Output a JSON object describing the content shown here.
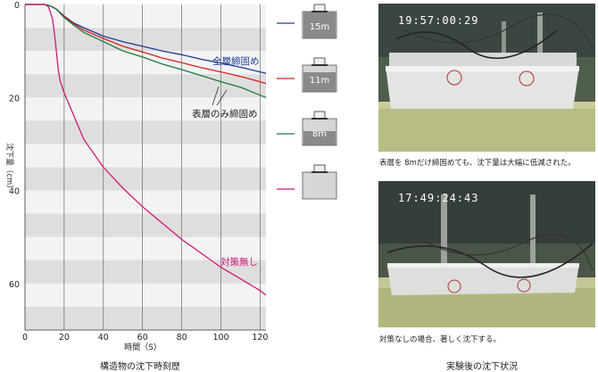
{
  "chart_data": {
    "type": "line",
    "title": "構造物の沈下時刻歴",
    "xlabel": "時間（S）",
    "ylabel": "沈下量（cm）",
    "xlim": [
      0,
      123
    ],
    "ylim": [
      0,
      70
    ],
    "xticks": [
      0,
      20,
      40,
      60,
      80,
      100,
      120
    ],
    "yticks": [
      0,
      20,
      40,
      60
    ],
    "grid": true,
    "series": [
      {
        "name": "15m",
        "color": "#1f3a93",
        "x": [
          0,
          10,
          13,
          16,
          20,
          25,
          30,
          40,
          50,
          60,
          70,
          80,
          90,
          100,
          110,
          120,
          123
        ],
        "y": [
          0,
          0,
          0.3,
          1.0,
          2.5,
          4.0,
          5.0,
          6.8,
          8.0,
          9.0,
          10.0,
          10.8,
          11.8,
          12.6,
          13.5,
          14.5,
          14.8
        ]
      },
      {
        "name": "11m",
        "color": "#d42020",
        "x": [
          0,
          10,
          13,
          16,
          20,
          25,
          30,
          40,
          50,
          60,
          70,
          80,
          90,
          100,
          110,
          120,
          123
        ],
        "y": [
          0,
          0,
          0.3,
          1.0,
          2.6,
          4.2,
          5.5,
          7.3,
          9.0,
          10.2,
          11.5,
          12.5,
          13.6,
          14.5,
          15.5,
          16.6,
          17.0
        ]
      },
      {
        "name": "8m",
        "color": "#1e7a3a",
        "x": [
          0,
          10,
          13,
          16,
          20,
          25,
          30,
          40,
          50,
          60,
          70,
          80,
          90,
          100,
          110,
          120,
          123
        ],
        "y": [
          0,
          0,
          0.3,
          1.0,
          2.8,
          4.5,
          6.0,
          8.0,
          10.0,
          11.3,
          12.8,
          14.0,
          15.3,
          16.6,
          17.8,
          19.5,
          20.0
        ]
      },
      {
        "name": "対策無し",
        "color": "#d0187a",
        "x": [
          0,
          10,
          12,
          14,
          15,
          16,
          17,
          18,
          20,
          25,
          30,
          40,
          50,
          60,
          70,
          80,
          90,
          100,
          110,
          120,
          123
        ],
        "y": [
          0,
          0,
          0.5,
          3.0,
          6.0,
          10.0,
          14.0,
          16.5,
          19.0,
          24.0,
          29.0,
          35.0,
          39.5,
          43.5,
          47.0,
          50.5,
          53.5,
          56.5,
          59.0,
          61.5,
          62.5
        ]
      }
    ],
    "annotations": {
      "full_layer": "全層締固め",
      "surface_only": "表層のみ締固め",
      "no_measure": "対策無し"
    },
    "legend_panels": [
      {
        "label": "15m",
        "series": "15m",
        "fill_fraction": 1.0
      },
      {
        "label": "11m",
        "series": "11m",
        "fill_fraction": 0.733
      },
      {
        "label": "8m",
        "series": "8m",
        "fill_fraction": 0.533
      },
      {
        "label": "",
        "series": "対策無し",
        "fill_fraction": 0.0
      }
    ]
  },
  "photos": [
    {
      "timestamp": "19:57:00:29",
      "caption": "表層を 8mだけ締固めても、沈下量は大幅に低減された。"
    },
    {
      "timestamp": "17:49:24:43",
      "caption": "対策なしの場合、著しく沈下する。"
    }
  ],
  "bottom_labels": {
    "left": "構造物の沈下時刻歴",
    "right": "実験後の沈下状況"
  }
}
